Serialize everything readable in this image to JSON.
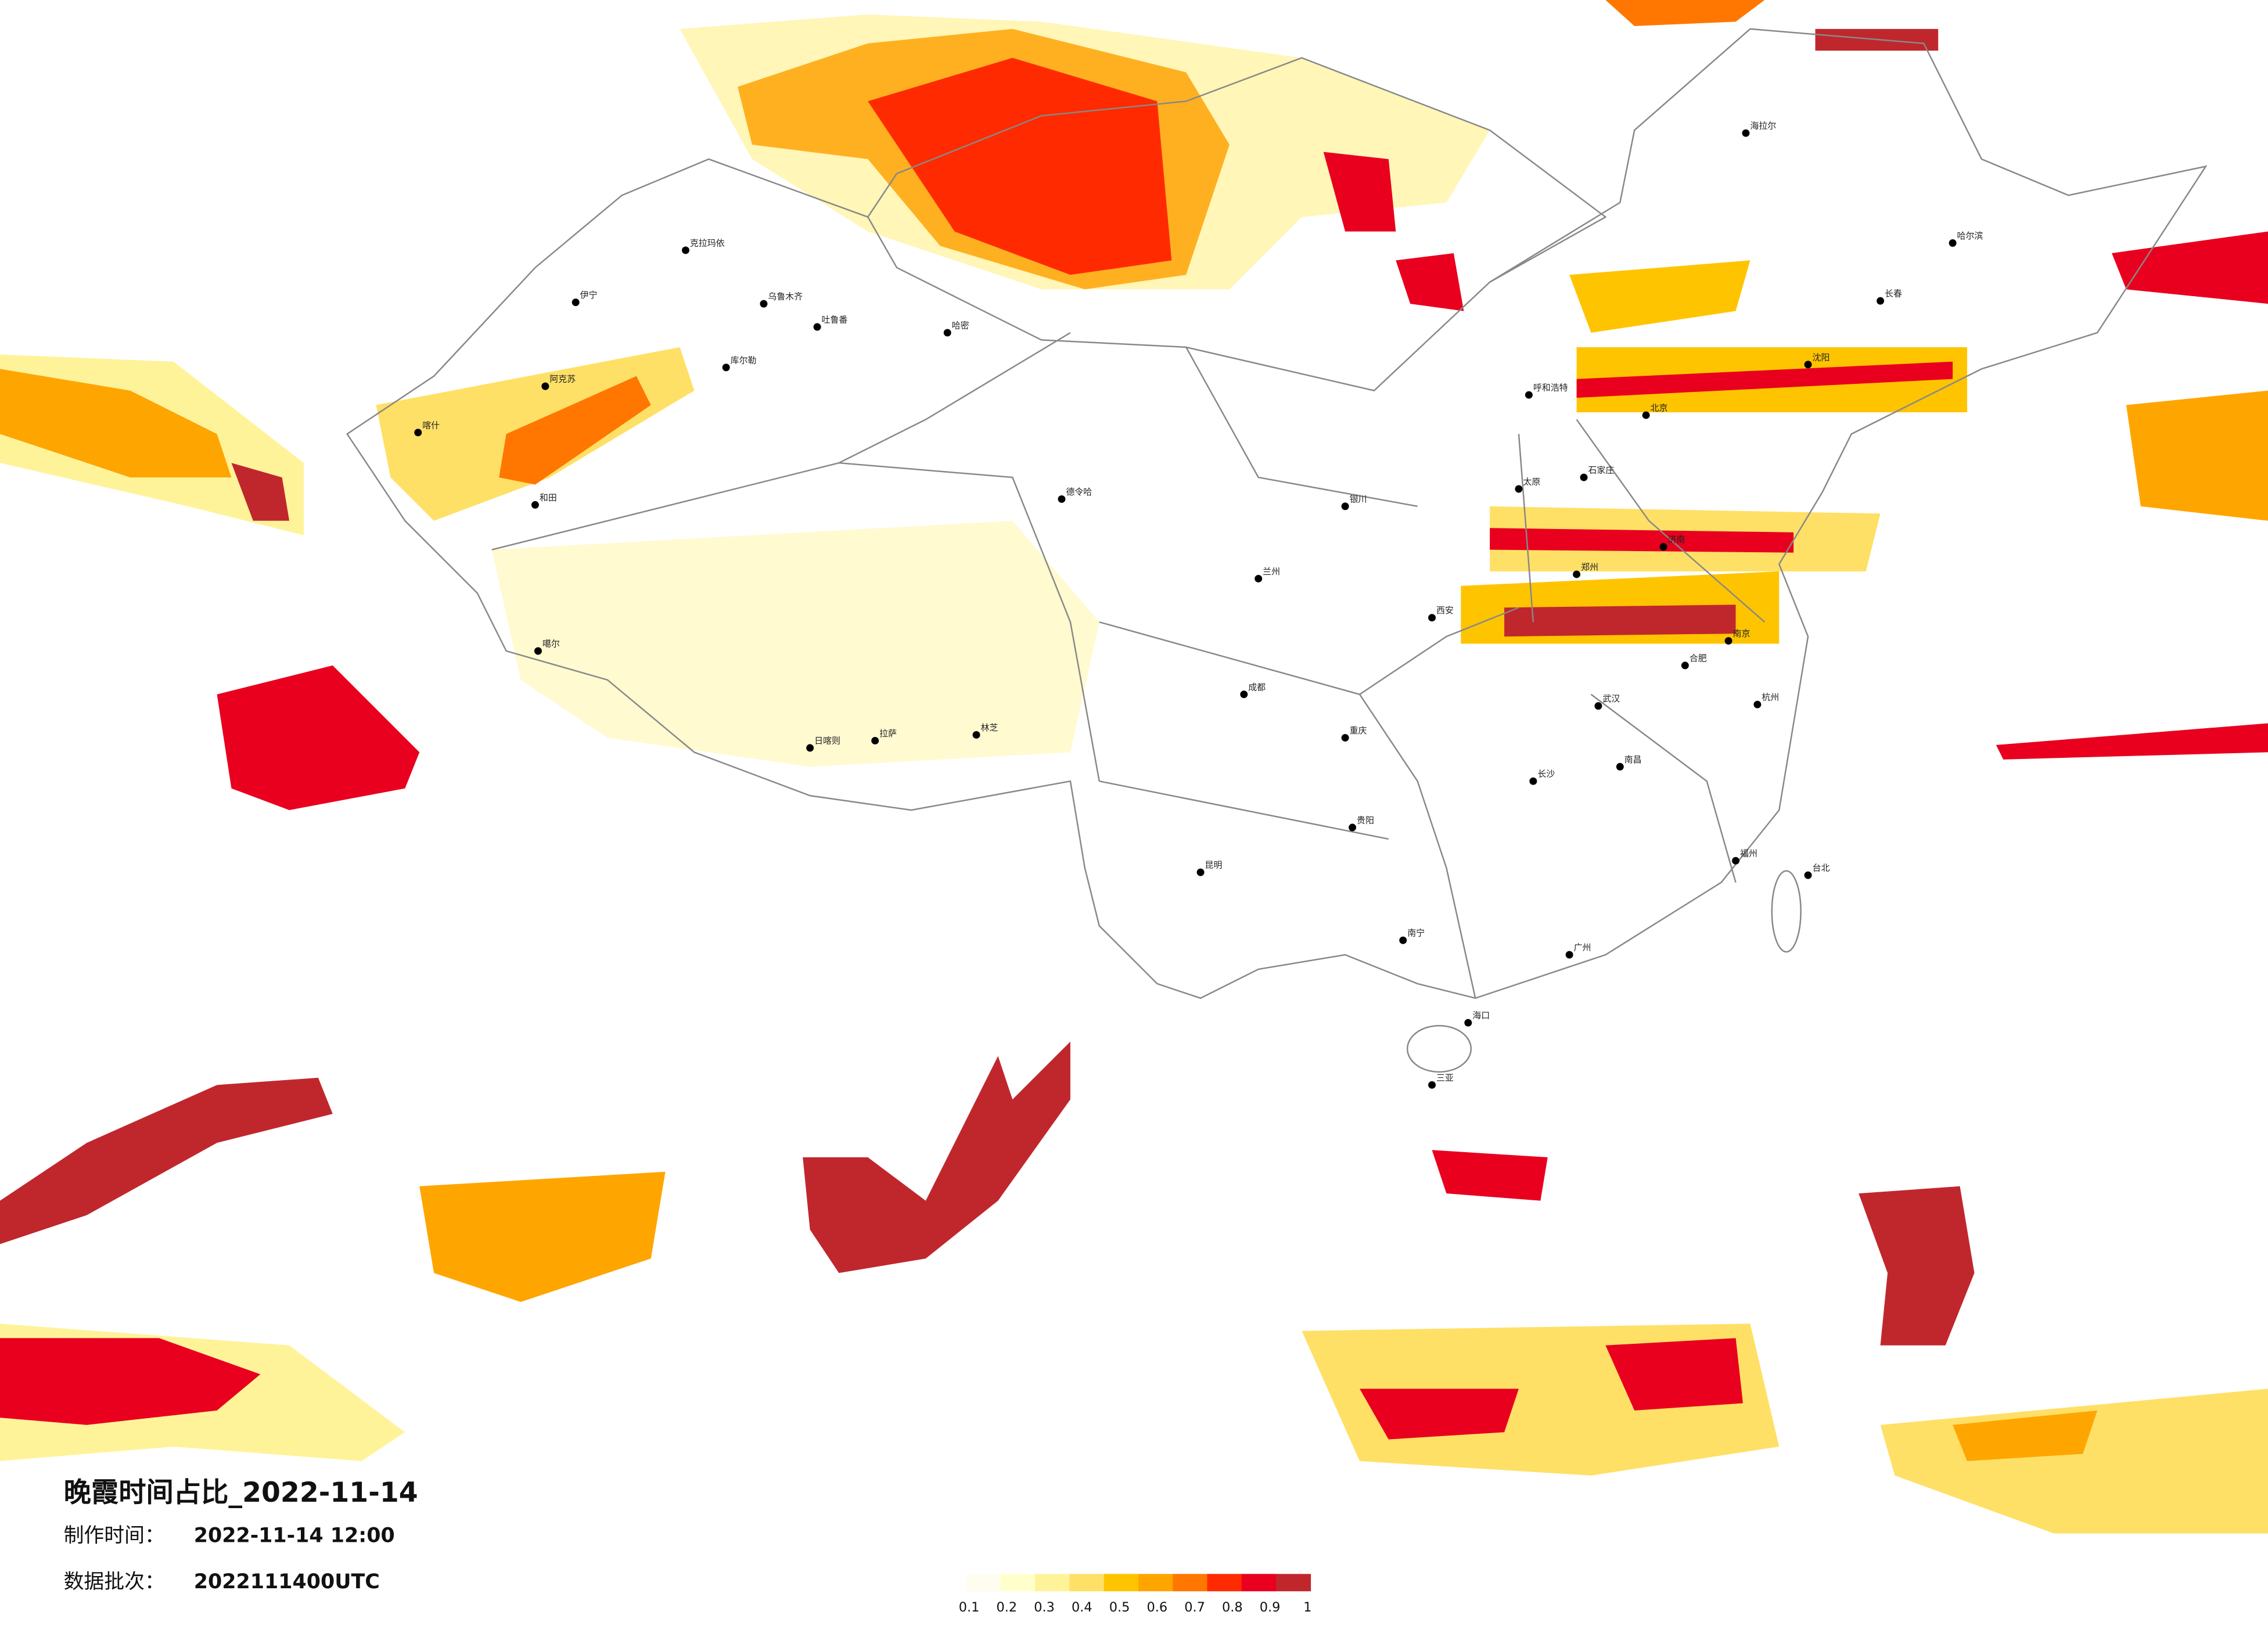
{
  "title": "晚霞时间占比_2022-11-14",
  "info": [
    {
      "label": "制作时间：",
      "value": "2022-11-14 12:00"
    },
    {
      "label": "数据批次：",
      "value": "2022111400UTC"
    }
  ],
  "colorbar": {
    "ticks": [
      0.1,
      0.2,
      0.3,
      0.4,
      0.5,
      0.6,
      0.7,
      0.8,
      0.9,
      1
    ],
    "colors": [
      "#fffdf0",
      "#ffffcc",
      "#fff39a",
      "#ffe066",
      "#ffc400",
      "#ffa500",
      "#ff7700",
      "#ff2a00",
      "#e8001e",
      "#c0272d"
    ]
  },
  "cities": [
    "伊宁",
    "克拉玛依",
    "乌鲁木齐",
    "吐鲁番",
    "哈密",
    "库尔勒",
    "阿克苏",
    "喀什",
    "和田",
    "噶尔",
    "日喀则",
    "拉萨",
    "林芝",
    "德令哈",
    "海拉尔",
    "哈尔滨",
    "长春",
    "沈阳",
    "呼和浩特",
    "北京",
    "石家庄",
    "太原",
    "济南",
    "郑州",
    "西安",
    "兰州",
    "银川",
    "成都",
    "重庆",
    "武汉",
    "合肥",
    "南京",
    "杭州",
    "南昌",
    "长沙",
    "贵阳",
    "昆明",
    "南宁",
    "广州",
    "福州",
    "台北",
    "海口",
    "三亚"
  ]
}
